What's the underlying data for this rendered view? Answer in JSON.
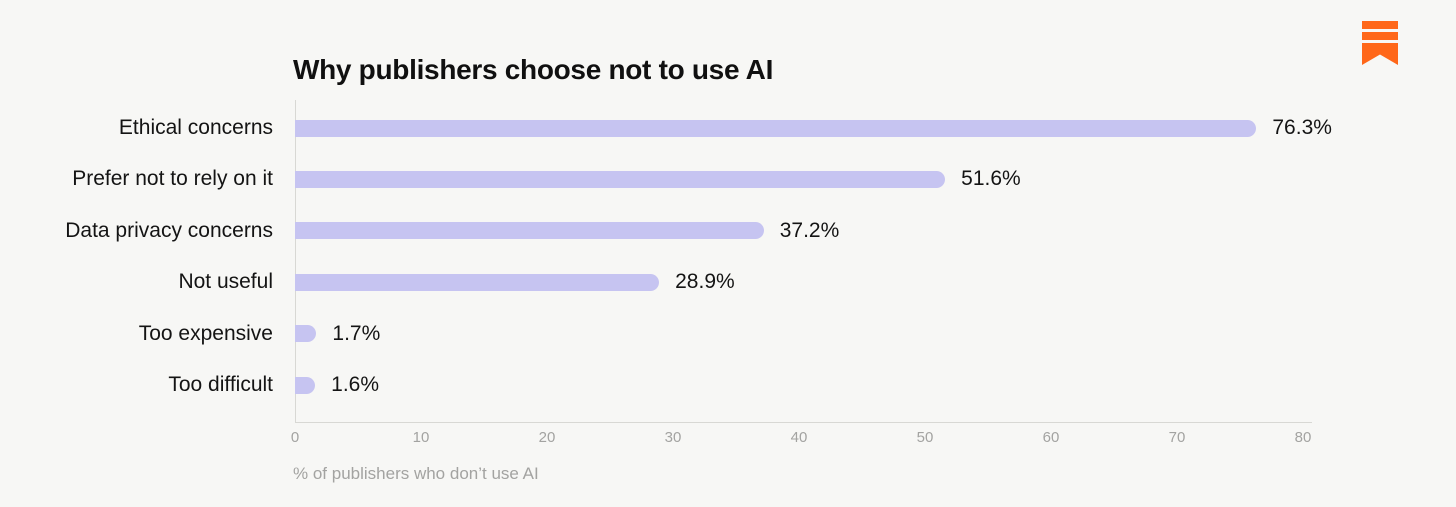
{
  "brand": {
    "logo_icon": "substack-bookmark-icon",
    "logo_color": "#FF6719"
  },
  "chart_data": {
    "type": "bar",
    "orientation": "horizontal",
    "title": "Why publishers choose not to use AI",
    "categories": [
      "Ethical concerns",
      "Prefer not to rely on it",
      "Data privacy concerns",
      "Not useful",
      "Too expensive",
      "Too difficult"
    ],
    "values": [
      76.3,
      51.6,
      37.2,
      28.9,
      1.7,
      1.6
    ],
    "value_labels": [
      "76.3%",
      "51.6%",
      "37.2%",
      "28.9%",
      "1.7%",
      "1.6%"
    ],
    "xlabel": "% of publishers who don’t use AI",
    "xlim": [
      0,
      80
    ],
    "xticks": [
      0,
      10,
      20,
      30,
      40,
      50,
      60,
      70,
      80
    ],
    "bar_color": "#c6c4f1",
    "axis_color": "#d8d8d4",
    "tick_color": "#a3a3a1",
    "grid": false,
    "legend": null
  }
}
